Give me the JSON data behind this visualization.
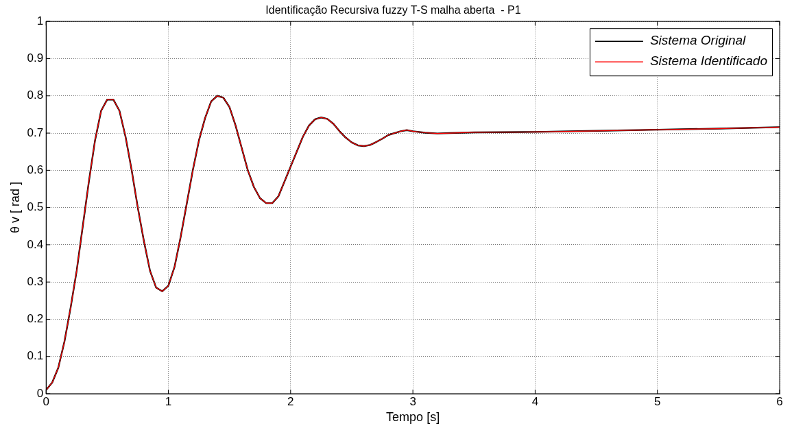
{
  "chart_data": {
    "type": "line",
    "title": "Identificação Recursiva fuzzy T-S malha aberta  - P1",
    "xlabel": "Tempo [s]",
    "ylabel": "θ v [ rad ]",
    "x": [
      0,
      0.05,
      0.1,
      0.15,
      0.2,
      0.25,
      0.3,
      0.35,
      0.4,
      0.45,
      0.5,
      0.55,
      0.6,
      0.65,
      0.7,
      0.75,
      0.8,
      0.85,
      0.9,
      0.95,
      1.0,
      1.05,
      1.1,
      1.15,
      1.2,
      1.25,
      1.3,
      1.35,
      1.4,
      1.45,
      1.5,
      1.55,
      1.6,
      1.65,
      1.7,
      1.75,
      1.8,
      1.85,
      1.9,
      1.95,
      2.0,
      2.05,
      2.1,
      2.15,
      2.2,
      2.25,
      2.3,
      2.35,
      2.4,
      2.45,
      2.5,
      2.55,
      2.6,
      2.65,
      2.7,
      2.75,
      2.8,
      2.9,
      2.95,
      3.0,
      3.1,
      3.2,
      3.3,
      3.5,
      4.0,
      4.5,
      5.0,
      5.5,
      6.0
    ],
    "series": [
      {
        "name": "Sistema Original",
        "color": "#000000",
        "values": [
          0.01,
          0.03,
          0.07,
          0.14,
          0.23,
          0.33,
          0.45,
          0.57,
          0.68,
          0.76,
          0.79,
          0.79,
          0.76,
          0.69,
          0.6,
          0.5,
          0.41,
          0.33,
          0.285,
          0.275,
          0.29,
          0.34,
          0.42,
          0.51,
          0.6,
          0.68,
          0.74,
          0.785,
          0.8,
          0.795,
          0.77,
          0.72,
          0.66,
          0.6,
          0.555,
          0.525,
          0.512,
          0.512,
          0.53,
          0.57,
          0.61,
          0.65,
          0.69,
          0.72,
          0.737,
          0.742,
          0.738,
          0.725,
          0.705,
          0.688,
          0.675,
          0.667,
          0.665,
          0.668,
          0.676,
          0.685,
          0.695,
          0.705,
          0.708,
          0.705,
          0.701,
          0.699,
          0.7,
          0.702,
          0.703,
          0.706,
          0.709,
          0.712,
          0.716
        ]
      },
      {
        "name": "Sistema Identificado",
        "color": "#ff0000",
        "values": [
          0.01,
          0.03,
          0.07,
          0.14,
          0.23,
          0.33,
          0.45,
          0.57,
          0.68,
          0.76,
          0.79,
          0.79,
          0.76,
          0.69,
          0.6,
          0.5,
          0.41,
          0.33,
          0.285,
          0.275,
          0.29,
          0.34,
          0.42,
          0.51,
          0.6,
          0.68,
          0.74,
          0.785,
          0.8,
          0.795,
          0.77,
          0.72,
          0.66,
          0.6,
          0.555,
          0.525,
          0.512,
          0.512,
          0.53,
          0.57,
          0.61,
          0.65,
          0.69,
          0.72,
          0.737,
          0.742,
          0.738,
          0.725,
          0.705,
          0.688,
          0.675,
          0.667,
          0.665,
          0.668,
          0.676,
          0.685,
          0.695,
          0.705,
          0.708,
          0.705,
          0.701,
          0.699,
          0.7,
          0.702,
          0.703,
          0.706,
          0.709,
          0.712,
          0.716
        ]
      }
    ],
    "xlim": [
      0,
      6
    ],
    "xticks": [
      0,
      1,
      2,
      3,
      4,
      5,
      6
    ],
    "ylim": [
      0,
      1
    ],
    "yticks": [
      0,
      0.1,
      0.2,
      0.3,
      0.4,
      0.5,
      0.6,
      0.7,
      0.8,
      0.9,
      1
    ],
    "grid": true,
    "legend": "top right",
    "marker": "none",
    "line_style": "solid"
  }
}
